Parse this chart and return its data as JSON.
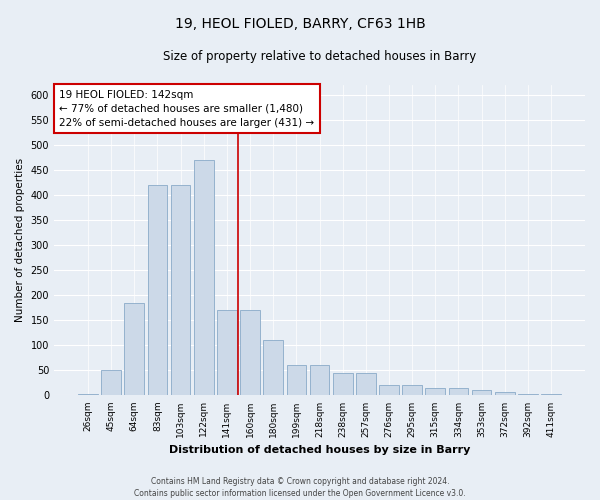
{
  "title": "19, HEOL FIOLED, BARRY, CF63 1HB",
  "subtitle": "Size of property relative to detached houses in Barry",
  "xlabel": "Distribution of detached houses by size in Barry",
  "ylabel": "Number of detached properties",
  "footer_line1": "Contains HM Land Registry data © Crown copyright and database right 2024.",
  "footer_line2": "Contains public sector information licensed under the Open Government Licence v3.0.",
  "annotation_line1": "19 HEOL FIOLED: 142sqm",
  "annotation_line2": "← 77% of detached houses are smaller (1,480)",
  "annotation_line3": "22% of semi-detached houses are larger (431) →",
  "bar_color": "#ccd9e8",
  "bar_edge_color": "#8aaac8",
  "marker_line_color": "#cc0000",
  "categories": [
    "26sqm",
    "45sqm",
    "64sqm",
    "83sqm",
    "103sqm",
    "122sqm",
    "141sqm",
    "160sqm",
    "180sqm",
    "199sqm",
    "218sqm",
    "238sqm",
    "257sqm",
    "276sqm",
    "295sqm",
    "315sqm",
    "334sqm",
    "353sqm",
    "372sqm",
    "392sqm",
    "411sqm"
  ],
  "values": [
    3,
    50,
    185,
    420,
    420,
    470,
    170,
    170,
    110,
    60,
    60,
    45,
    45,
    20,
    20,
    15,
    15,
    10,
    7,
    3,
    2
  ],
  "ylim": [
    0,
    620
  ],
  "yticks": [
    0,
    50,
    100,
    150,
    200,
    250,
    300,
    350,
    400,
    450,
    500,
    550,
    600
  ],
  "bg_color": "#e8eef5",
  "plot_bg_color": "#e8eef5",
  "title_fontsize": 10,
  "subtitle_fontsize": 8.5,
  "ylabel_fontsize": 7.5,
  "xlabel_fontsize": 8,
  "ytick_fontsize": 7,
  "xtick_fontsize": 6.5,
  "annotation_fontsize": 7.5,
  "footer_fontsize": 5.5
}
